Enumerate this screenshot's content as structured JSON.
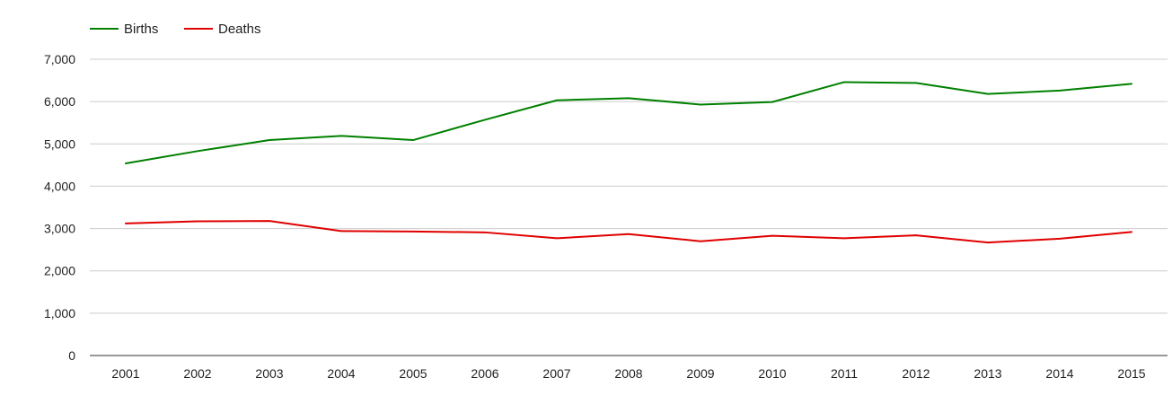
{
  "chart_data": {
    "type": "line",
    "title": "",
    "xlabel": "",
    "ylabel": "",
    "x": [
      2001,
      2002,
      2003,
      2004,
      2005,
      2006,
      2007,
      2008,
      2009,
      2010,
      2011,
      2012,
      2013,
      2014,
      2015
    ],
    "x_tick_labels": [
      "2001",
      "2002",
      "2003",
      "2004",
      "2005",
      "2006",
      "2007",
      "2008",
      "2009",
      "2010",
      "2011",
      "2012",
      "2013",
      "2014",
      "2015"
    ],
    "ylim": [
      0,
      7000
    ],
    "y_ticks": [
      0,
      1000,
      2000,
      3000,
      4000,
      5000,
      6000,
      7000
    ],
    "y_tick_labels": [
      "0",
      "1,000",
      "2,000",
      "3,000",
      "4,000",
      "5,000",
      "6,000",
      "7,000"
    ],
    "grid": true,
    "legend_position": "top-left",
    "series": [
      {
        "name": "Births",
        "color": "#008000",
        "values": [
          4540,
          4830,
          5090,
          5190,
          5090,
          5570,
          6030,
          6080,
          5930,
          5990,
          6460,
          6440,
          6180,
          6260,
          6420
        ]
      },
      {
        "name": "Deaths",
        "color": "#e00000",
        "values": [
          3120,
          3170,
          3180,
          2940,
          2930,
          2910,
          2770,
          2870,
          2700,
          2830,
          2770,
          2840,
          2670,
          2760,
          2920
        ]
      }
    ]
  }
}
